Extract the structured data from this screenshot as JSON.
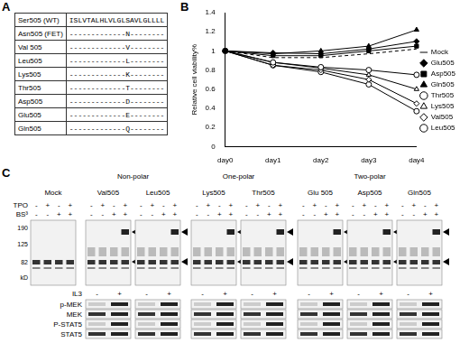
{
  "panel_labels": [
    "A",
    "B",
    "C"
  ],
  "panel_a": {
    "table": {
      "header": [
        "Ser505 (WT)",
        "ISLVTALHLVLGLSAVLGLLLL"
      ],
      "rows": [
        [
          "Asn505 (FET)",
          "-------------N--------"
        ],
        [
          "Val 505",
          "-------------V--------"
        ],
        [
          "Leu505",
          "-------------L--------"
        ],
        [
          "Lys505",
          "-------------K--------"
        ],
        [
          "Thr505",
          "-------------T--------"
        ],
        [
          "Asp505",
          "-------------D--------"
        ],
        [
          "Glu505",
          "-------------E--------"
        ],
        [
          "Gln505",
          "-------------Q--------"
        ]
      ]
    }
  },
  "chart_data": {
    "type": "line",
    "y_label": "Relative cell viability%",
    "categories": [
      "day0",
      "day1",
      "day2",
      "day3",
      "day4"
    ],
    "series": [
      {
        "name": "Mock",
        "color": "#000000",
        "marker": "none",
        "line_style": "dashed",
        "values": [
          1,
          0.93,
          0.93,
          0.97,
          1.02
        ]
      },
      {
        "name": "Glu505",
        "color": "#000000",
        "marker": "filled-diamond",
        "line_style": "solid",
        "values": [
          1,
          0.98,
          0.97,
          1.02,
          1.1
        ]
      },
      {
        "name": "Asp505",
        "color": "#000000",
        "marker": "filled-square",
        "line_style": "solid",
        "values": [
          1,
          0.95,
          0.95,
          1.0,
          1.05
        ]
      },
      {
        "name": "Gln505",
        "color": "#000000",
        "marker": "filled-triangle",
        "line_style": "solid",
        "values": [
          1,
          0.97,
          1.0,
          1.05,
          1.22
        ]
      },
      {
        "name": "Thr505",
        "color": "#000000",
        "marker": "open-circle",
        "line_style": "solid",
        "values": [
          1,
          0.88,
          0.83,
          0.8,
          0.75
        ]
      },
      {
        "name": "Lys505",
        "color": "#000000",
        "marker": "open-triangle",
        "line_style": "solid",
        "values": [
          1,
          0.88,
          0.82,
          0.75,
          0.6
        ]
      },
      {
        "name": "Val505",
        "color": "#000000",
        "marker": "open-diamond",
        "line_style": "solid",
        "values": [
          1,
          0.85,
          0.8,
          0.7,
          0.45
        ]
      },
      {
        "name": "Leu505",
        "color": "#000000",
        "marker": "open-circle",
        "line_style": "solid",
        "values": [
          1,
          0.85,
          0.78,
          0.65,
          0.37
        ]
      }
    ],
    "ylim": [
      0,
      1.4
    ],
    "yticks": [
      0,
      0.2,
      0.4,
      0.6,
      0.8,
      1,
      1.2,
      1.4
    ],
    "grid": false,
    "legend": "right"
  },
  "panel_c": {
    "mock": "Mock",
    "groups": [
      {
        "title": "Non-polar",
        "blots": [
          "Val505",
          "Leu505"
        ]
      },
      {
        "title": "One-polar",
        "blots": [
          "Lys505",
          "Thr505"
        ]
      },
      {
        "title": "Two-polar",
        "blots": [
          "Glu 505",
          "Asp505",
          "Gln505"
        ]
      }
    ],
    "treatments": [
      {
        "name": "TPO",
        "signs": [
          "-",
          "+",
          "-",
          "+"
        ]
      },
      {
        "name": "BS³",
        "signs": [
          "-",
          "-",
          "+",
          "+"
        ]
      }
    ],
    "mw_markers": [
      190,
      125,
      82
    ],
    "mw_unit": "kD",
    "il3": {
      "name": "IL3",
      "signs": [
        "-",
        "+"
      ]
    },
    "rows": [
      "p-MEK",
      "MEK",
      "P-STAT5",
      "STAT5"
    ]
  }
}
